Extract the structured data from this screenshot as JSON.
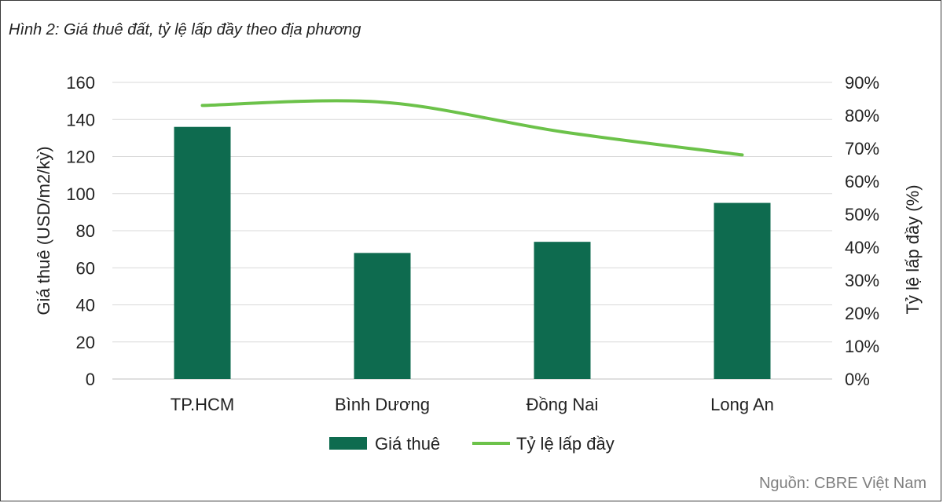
{
  "figure": {
    "title": "Hình 2: Giá thuê đất, tỷ lệ lấp đầy theo địa phương",
    "source": "Nguồn: CBRE Việt Nam"
  },
  "chart_data": {
    "type": "bar",
    "categories": [
      "TP.HCM",
      "Bình Dương",
      "Đồng Nai",
      "Long An"
    ],
    "series": [
      {
        "name": "Giá thuê",
        "type": "bar",
        "axis": "left",
        "values": [
          136,
          68,
          74,
          95
        ],
        "color": "#0e6b4f"
      },
      {
        "name": "Tỷ lệ lấp đầy",
        "type": "line",
        "axis": "right",
        "values": [
          83,
          84,
          75,
          68
        ],
        "unit": "%",
        "color": "#6cc24a"
      }
    ],
    "ylabel": "Giá thuê (USD/m2/kỳ)",
    "y2label": "Tỷ lệ lấp đầy (%)",
    "ylim": [
      0,
      160
    ],
    "yticks": [
      "0",
      "20",
      "40",
      "60",
      "80",
      "100",
      "120",
      "140",
      "160"
    ],
    "y2lim": [
      0,
      90
    ],
    "y2ticks": [
      "0%",
      "10%",
      "20%",
      "30%",
      "40%",
      "50%",
      "60%",
      "70%",
      "80%",
      "90%"
    ],
    "grid": true,
    "legend_position": "bottom"
  }
}
